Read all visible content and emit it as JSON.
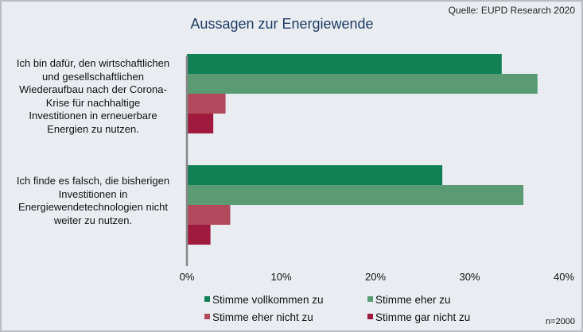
{
  "chart_data": {
    "type": "bar",
    "orientation": "horizontal",
    "title": "Aussagen zur Energiewende",
    "source": "Quelle: EUPD Research 2020",
    "note": "n=2000",
    "categories": [
      "Ich bin dafür, den wirtschaftlichen und gesellschaftlichen Wiederaufbau nach der Corona-Krise für nachhaltige Investitionen in erneuerbare Energien zu nutzen.",
      "Ich finde es falsch, die bisherigen Investitionen in Energiewendetechnologien nicht weiter zu nutzen."
    ],
    "category_lines": [
      [
        "Ich bin dafür, den wirtschaftlichen",
        "und gesellschaftlichen",
        "Wiederaufbau nach der Corona-",
        "Krise für nachhaltige",
        "Investitionen in erneuerbare",
        "Energien zu nutzen."
      ],
      [
        "Ich finde es falsch, die bisherigen",
        "Investitionen in",
        "Energiewendetechnologien nicht",
        "weiter zu nutzen."
      ]
    ],
    "series": [
      {
        "name": "Stimme vollkommen zu",
        "color": "#128055",
        "values": [
          33.4,
          27.1
        ]
      },
      {
        "name": "Stimme eher zu",
        "color": "#5a9b74",
        "values": [
          37.2,
          35.7
        ]
      },
      {
        "name": "Stimme eher nicht zu",
        "color": "#b3495c",
        "values": [
          4.1,
          4.6
        ]
      },
      {
        "name": "Stimme gar nicht zu",
        "color": "#a0193f",
        "values": [
          2.8,
          2.5
        ]
      }
    ],
    "xlim": [
      0,
      40
    ],
    "xticks": [
      "0%",
      "10%",
      "20%",
      "30%",
      "40%"
    ],
    "xtick_values": [
      0,
      10,
      20,
      30,
      40
    ],
    "xlabel": "",
    "ylabel": "",
    "grid": false,
    "legend_position": "bottom"
  }
}
